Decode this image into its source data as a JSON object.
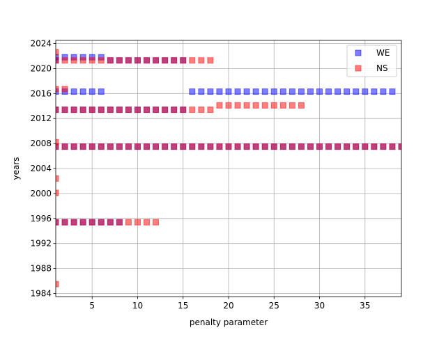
{
  "chart_data": {
    "type": "scatter",
    "title": "",
    "xlabel": "penalty parameter",
    "ylabel": "years",
    "xlim": [
      1,
      39
    ],
    "ylim": [
      1983.5,
      2024.5
    ],
    "xticks": [
      5,
      10,
      15,
      20,
      25,
      30,
      35
    ],
    "yticks": [
      1984,
      1988,
      1992,
      1996,
      2000,
      2004,
      2008,
      2012,
      2016,
      2020,
      2024
    ],
    "grid": true,
    "legend": "top-right",
    "series": [
      {
        "name": "WE",
        "color": "#0000ff",
        "marker": "square",
        "alpha": 0.5,
        "points": [
          [
            1,
            1995.4
          ],
          [
            2,
            1995.4
          ],
          [
            3,
            1995.4
          ],
          [
            4,
            1995.4
          ],
          [
            5,
            1995.4
          ],
          [
            6,
            1995.4
          ],
          [
            7,
            1995.4
          ],
          [
            8,
            1995.4
          ],
          [
            1,
            2007.5
          ],
          [
            2,
            2007.5
          ],
          [
            3,
            2007.5
          ],
          [
            4,
            2007.5
          ],
          [
            5,
            2007.5
          ],
          [
            6,
            2007.5
          ],
          [
            7,
            2007.5
          ],
          [
            8,
            2007.5
          ],
          [
            9,
            2007.5
          ],
          [
            10,
            2007.5
          ],
          [
            11,
            2007.5
          ],
          [
            12,
            2007.5
          ],
          [
            13,
            2007.5
          ],
          [
            14,
            2007.5
          ],
          [
            15,
            2007.5
          ],
          [
            16,
            2007.5
          ],
          [
            17,
            2007.5
          ],
          [
            18,
            2007.5
          ],
          [
            19,
            2007.5
          ],
          [
            20,
            2007.5
          ],
          [
            21,
            2007.5
          ],
          [
            22,
            2007.5
          ],
          [
            23,
            2007.5
          ],
          [
            24,
            2007.5
          ],
          [
            25,
            2007.5
          ],
          [
            26,
            2007.5
          ],
          [
            27,
            2007.5
          ],
          [
            28,
            2007.5
          ],
          [
            29,
            2007.5
          ],
          [
            30,
            2007.5
          ],
          [
            31,
            2007.5
          ],
          [
            32,
            2007.5
          ],
          [
            33,
            2007.5
          ],
          [
            34,
            2007.5
          ],
          [
            35,
            2007.5
          ],
          [
            36,
            2007.5
          ],
          [
            37,
            2007.5
          ],
          [
            38,
            2007.5
          ],
          [
            39,
            2007.5
          ],
          [
            1,
            2013.4
          ],
          [
            2,
            2013.4
          ],
          [
            3,
            2013.4
          ],
          [
            4,
            2013.4
          ],
          [
            5,
            2013.4
          ],
          [
            6,
            2013.4
          ],
          [
            7,
            2013.4
          ],
          [
            8,
            2013.4
          ],
          [
            9,
            2013.4
          ],
          [
            10,
            2013.4
          ],
          [
            11,
            2013.4
          ],
          [
            12,
            2013.4
          ],
          [
            13,
            2013.4
          ],
          [
            14,
            2013.4
          ],
          [
            15,
            2013.4
          ],
          [
            1,
            2016.3
          ],
          [
            2,
            2016.3
          ],
          [
            3,
            2016.3
          ],
          [
            4,
            2016.3
          ],
          [
            5,
            2016.3
          ],
          [
            6,
            2016.3
          ],
          [
            16,
            2016.3
          ],
          [
            17,
            2016.3
          ],
          [
            18,
            2016.3
          ],
          [
            19,
            2016.3
          ],
          [
            20,
            2016.3
          ],
          [
            21,
            2016.3
          ],
          [
            22,
            2016.3
          ],
          [
            23,
            2016.3
          ],
          [
            24,
            2016.3
          ],
          [
            25,
            2016.3
          ],
          [
            26,
            2016.3
          ],
          [
            27,
            2016.3
          ],
          [
            28,
            2016.3
          ],
          [
            29,
            2016.3
          ],
          [
            30,
            2016.3
          ],
          [
            31,
            2016.3
          ],
          [
            32,
            2016.3
          ],
          [
            33,
            2016.3
          ],
          [
            34,
            2016.3
          ],
          [
            35,
            2016.3
          ],
          [
            36,
            2016.3
          ],
          [
            37,
            2016.3
          ],
          [
            38,
            2016.3
          ],
          [
            1,
            2021.3
          ],
          [
            7,
            2021.3
          ],
          [
            8,
            2021.3
          ],
          [
            9,
            2021.3
          ],
          [
            10,
            2021.3
          ],
          [
            11,
            2021.3
          ],
          [
            12,
            2021.3
          ],
          [
            13,
            2021.3
          ],
          [
            14,
            2021.3
          ],
          [
            15,
            2021.3
          ],
          [
            1,
            2021.8
          ],
          [
            2,
            2021.8
          ],
          [
            3,
            2021.8
          ],
          [
            4,
            2021.8
          ],
          [
            5,
            2021.8
          ],
          [
            6,
            2021.8
          ]
        ]
      },
      {
        "name": "NS",
        "color": "#ff0000",
        "marker": "square",
        "alpha": 0.5,
        "points": [
          [
            1,
            1985.5
          ],
          [
            1,
            2000.1
          ],
          [
            1,
            2002.4
          ],
          [
            1,
            2008.2
          ],
          [
            1,
            2016.7
          ],
          [
            2,
            2016.7
          ],
          [
            1,
            2022.6
          ],
          [
            1,
            1995.4
          ],
          [
            2,
            1995.4
          ],
          [
            3,
            1995.4
          ],
          [
            4,
            1995.4
          ],
          [
            5,
            1995.4
          ],
          [
            6,
            1995.4
          ],
          [
            7,
            1995.4
          ],
          [
            8,
            1995.4
          ],
          [
            9,
            1995.4
          ],
          [
            10,
            1995.4
          ],
          [
            11,
            1995.4
          ],
          [
            12,
            1995.4
          ],
          [
            1,
            2007.5
          ],
          [
            2,
            2007.5
          ],
          [
            3,
            2007.5
          ],
          [
            4,
            2007.5
          ],
          [
            5,
            2007.5
          ],
          [
            6,
            2007.5
          ],
          [
            7,
            2007.5
          ],
          [
            8,
            2007.5
          ],
          [
            9,
            2007.5
          ],
          [
            10,
            2007.5
          ],
          [
            11,
            2007.5
          ],
          [
            12,
            2007.5
          ],
          [
            13,
            2007.5
          ],
          [
            14,
            2007.5
          ],
          [
            15,
            2007.5
          ],
          [
            16,
            2007.5
          ],
          [
            17,
            2007.5
          ],
          [
            18,
            2007.5
          ],
          [
            19,
            2007.5
          ],
          [
            20,
            2007.5
          ],
          [
            21,
            2007.5
          ],
          [
            22,
            2007.5
          ],
          [
            23,
            2007.5
          ],
          [
            24,
            2007.5
          ],
          [
            25,
            2007.5
          ],
          [
            26,
            2007.5
          ],
          [
            27,
            2007.5
          ],
          [
            28,
            2007.5
          ],
          [
            29,
            2007.5
          ],
          [
            30,
            2007.5
          ],
          [
            31,
            2007.5
          ],
          [
            32,
            2007.5
          ],
          [
            33,
            2007.5
          ],
          [
            34,
            2007.5
          ],
          [
            35,
            2007.5
          ],
          [
            36,
            2007.5
          ],
          [
            37,
            2007.5
          ],
          [
            38,
            2007.5
          ],
          [
            39,
            2007.5
          ],
          [
            1,
            2013.4
          ],
          [
            2,
            2013.4
          ],
          [
            3,
            2013.4
          ],
          [
            4,
            2013.4
          ],
          [
            5,
            2013.4
          ],
          [
            6,
            2013.4
          ],
          [
            7,
            2013.4
          ],
          [
            8,
            2013.4
          ],
          [
            9,
            2013.4
          ],
          [
            10,
            2013.4
          ],
          [
            11,
            2013.4
          ],
          [
            12,
            2013.4
          ],
          [
            13,
            2013.4
          ],
          [
            14,
            2013.4
          ],
          [
            15,
            2013.4
          ],
          [
            16,
            2013.4
          ],
          [
            17,
            2013.4
          ],
          [
            18,
            2013.4
          ],
          [
            19,
            2014.1
          ],
          [
            20,
            2014.1
          ],
          [
            21,
            2014.1
          ],
          [
            22,
            2014.1
          ],
          [
            23,
            2014.1
          ],
          [
            24,
            2014.1
          ],
          [
            25,
            2014.1
          ],
          [
            26,
            2014.1
          ],
          [
            27,
            2014.1
          ],
          [
            28,
            2014.1
          ],
          [
            1,
            2021.3
          ],
          [
            2,
            2021.3
          ],
          [
            3,
            2021.3
          ],
          [
            4,
            2021.3
          ],
          [
            5,
            2021.3
          ],
          [
            6,
            2021.3
          ],
          [
            7,
            2021.3
          ],
          [
            8,
            2021.3
          ],
          [
            9,
            2021.3
          ],
          [
            10,
            2021.3
          ],
          [
            11,
            2021.3
          ],
          [
            12,
            2021.3
          ],
          [
            13,
            2021.3
          ],
          [
            14,
            2021.3
          ],
          [
            15,
            2021.3
          ],
          [
            16,
            2021.3
          ],
          [
            17,
            2021.3
          ],
          [
            18,
            2021.3
          ]
        ]
      }
    ]
  }
}
